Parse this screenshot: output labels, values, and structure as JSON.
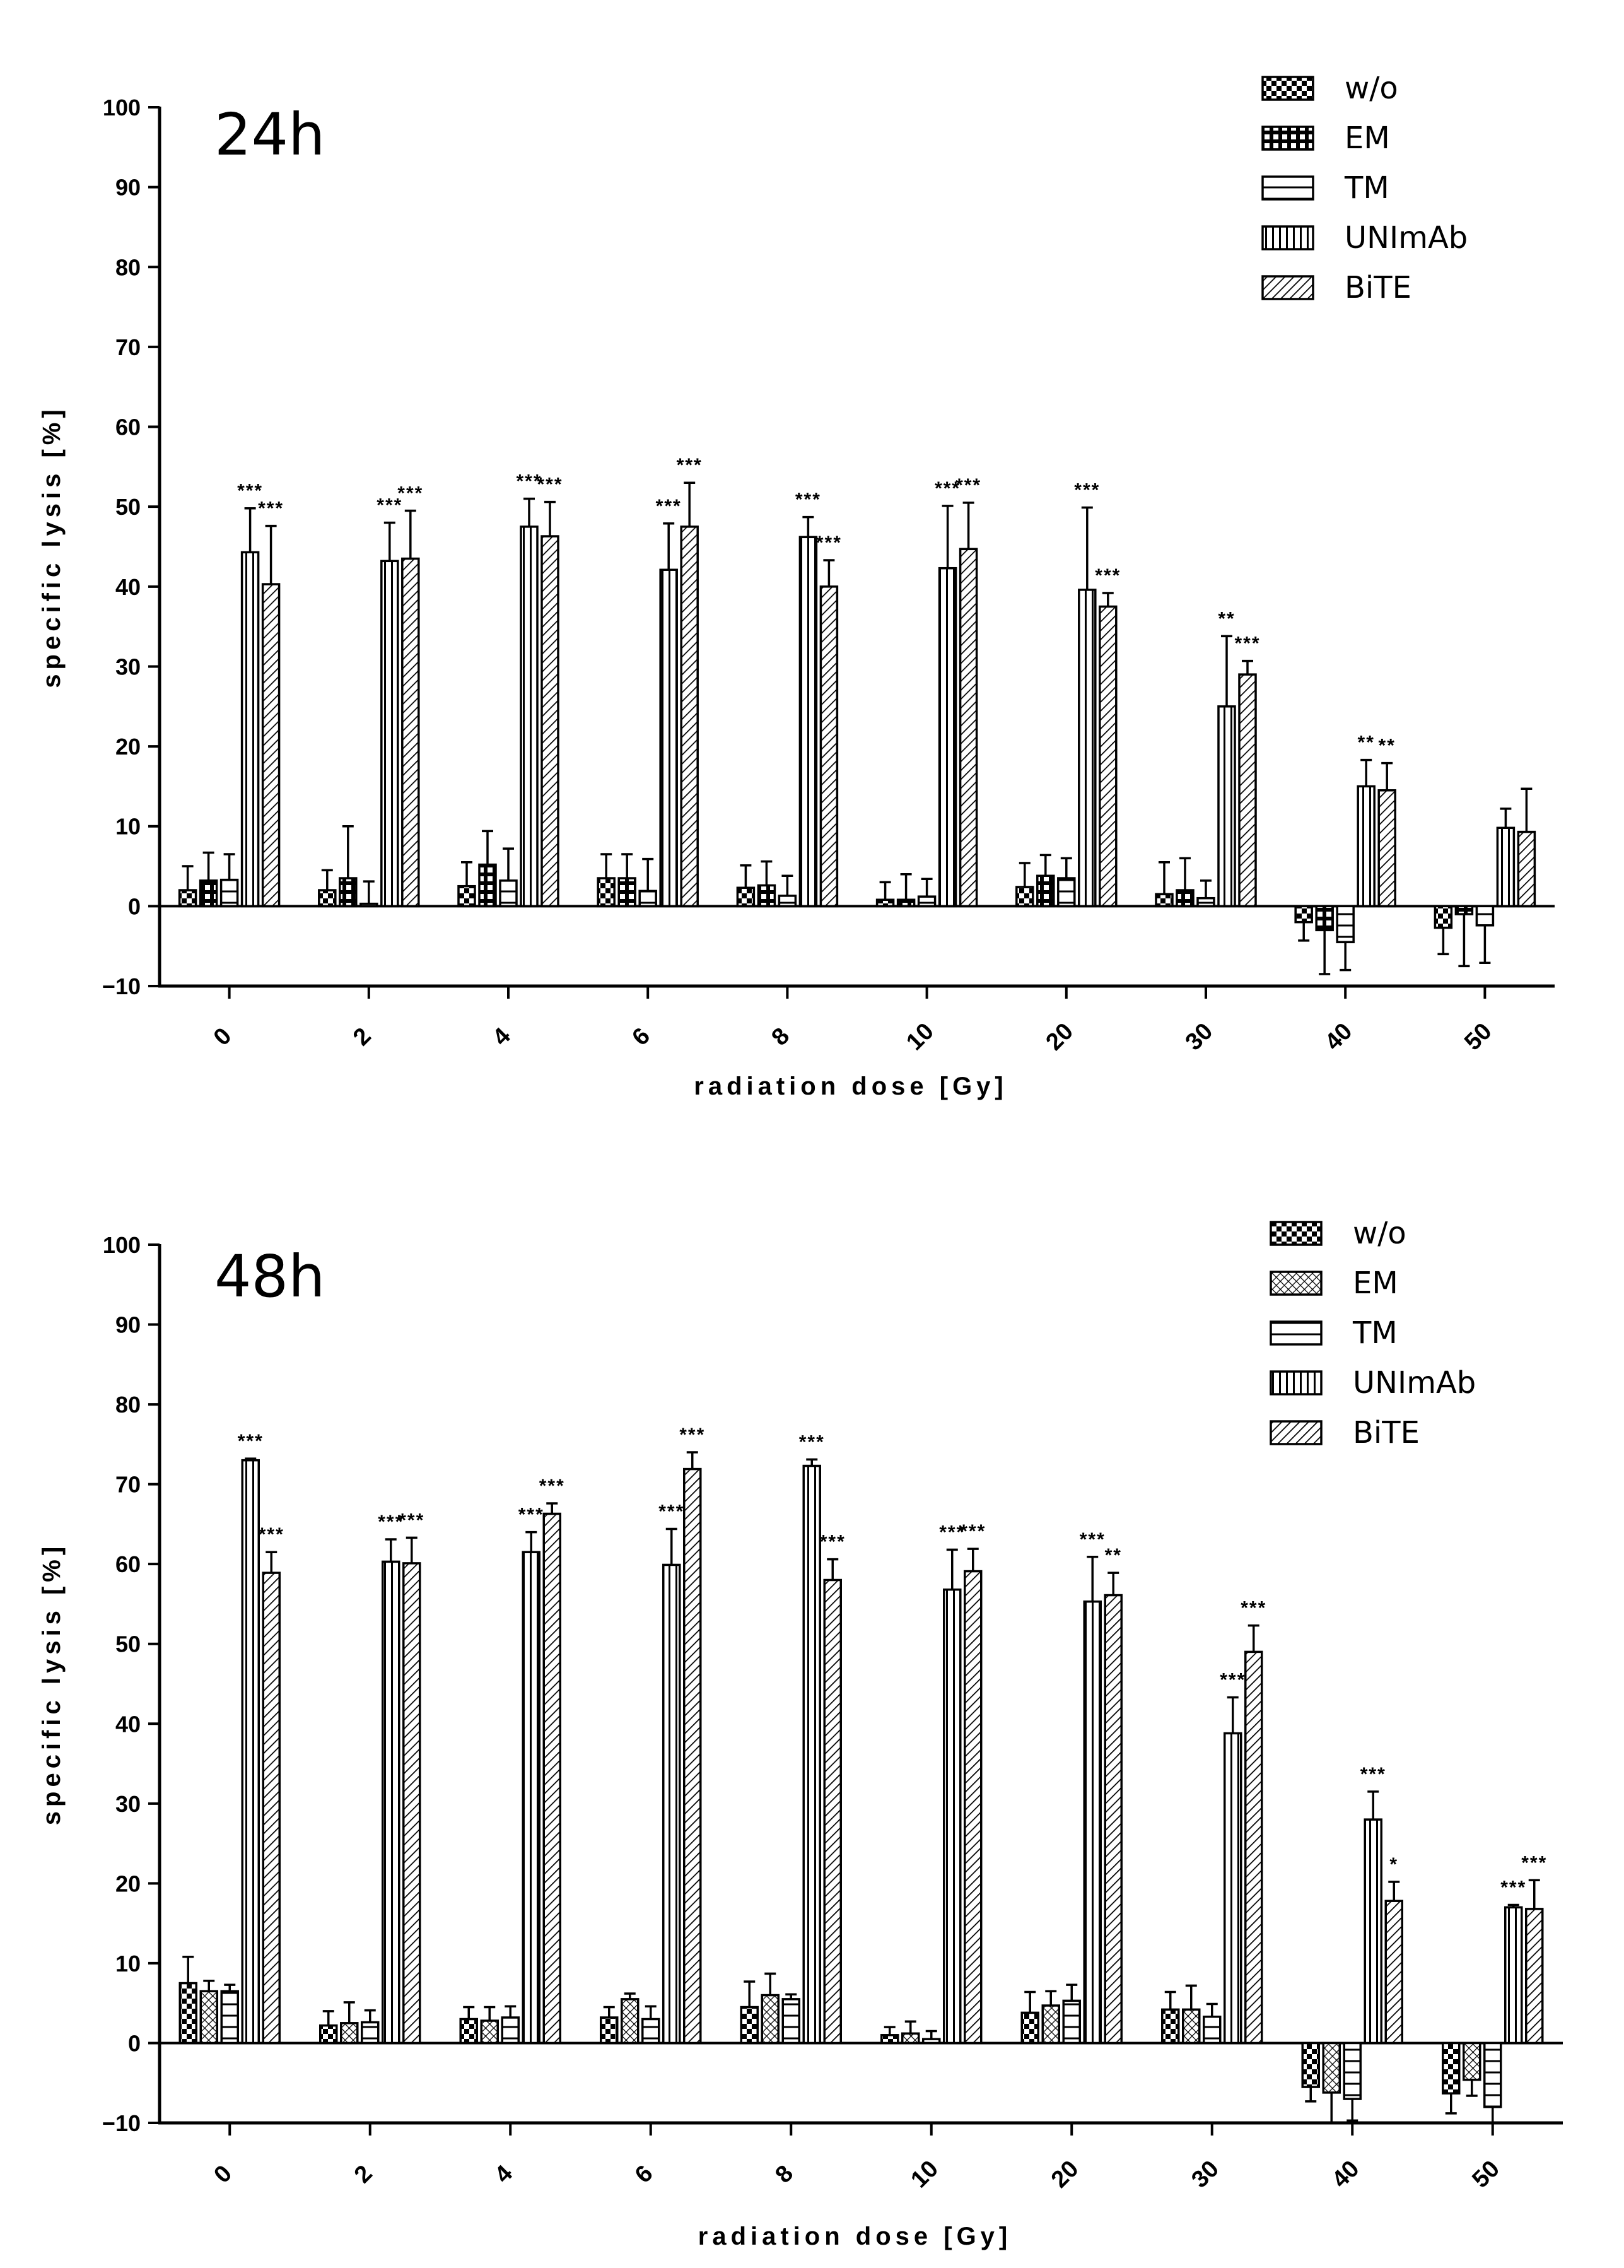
{
  "chart_data": [
    {
      "type": "bar",
      "title": "24h",
      "xlabel": "radiation dose [Gy]",
      "ylabel": "specific lysis [%]",
      "ylim": [
        -10,
        100
      ],
      "yticks": [
        -10,
        0,
        10,
        20,
        30,
        40,
        50,
        60,
        70,
        80,
        90,
        100
      ],
      "categories": [
        "0",
        "2",
        "4",
        "6",
        "8",
        "10",
        "20",
        "30",
        "40",
        "50"
      ],
      "series": [
        {
          "name": "w/o",
          "pattern": "checker",
          "values": [
            2,
            2,
            2.5,
            3.5,
            2.3,
            0.8,
            2.4,
            1.5,
            -2,
            -2.7
          ],
          "errors": [
            3,
            2.5,
            3,
            3,
            2.8,
            2.2,
            3,
            4,
            2.3,
            3.3
          ],
          "sig": [
            "",
            "",
            "",
            "",
            "",
            "",
            "",
            "",
            "",
            ""
          ]
        },
        {
          "name": "EM",
          "pattern": "grid",
          "values": [
            3.2,
            3.5,
            5.2,
            3.5,
            2.6,
            0.8,
            3.8,
            2,
            -3,
            -1
          ],
          "errors": [
            3.5,
            6.5,
            4.2,
            3,
            3,
            3.2,
            2.6,
            4,
            5.5,
            6.5
          ],
          "sig": [
            "",
            "",
            "",
            "",
            "",
            "",
            "",
            "",
            "",
            ""
          ]
        },
        {
          "name": "TM",
          "pattern": "hlines",
          "values": [
            3.3,
            0.3,
            3.2,
            1.9,
            1.3,
            1.2,
            3.5,
            1,
            -4.5,
            -2.4
          ],
          "errors": [
            3.2,
            2.8,
            4,
            4,
            2.5,
            2.2,
            2.5,
            2.2,
            3.5,
            4.7
          ],
          "sig": [
            "",
            "",
            "",
            "",
            "",
            "",
            "",
            "",
            "",
            ""
          ]
        },
        {
          "name": "UNImAb",
          "pattern": "vlines",
          "values": [
            44.3,
            43.2,
            47.5,
            42.1,
            46.2,
            42.3,
            39.6,
            25,
            15,
            9.8
          ],
          "errors": [
            5.5,
            4.8,
            3.5,
            5.8,
            2.5,
            7.8,
            10.3,
            8.8,
            3.3,
            2.4
          ],
          "sig": [
            "***",
            "***",
            "***",
            "***",
            "***",
            "***",
            "***",
            "**",
            "**",
            ""
          ]
        },
        {
          "name": "BiTE",
          "pattern": "diagonal",
          "values": [
            40.3,
            43.5,
            46.3,
            47.5,
            40,
            44.7,
            37.5,
            29,
            14.5,
            9.3
          ],
          "errors": [
            7.3,
            6,
            4.3,
            5.5,
            3.3,
            5.8,
            1.7,
            1.7,
            3.4,
            5.4
          ],
          "sig": [
            "***",
            "***",
            "***",
            "***",
            "***",
            "***",
            "***",
            "***",
            "**",
            ""
          ]
        }
      ]
    },
    {
      "type": "bar",
      "title": "48h",
      "xlabel": "radiation dose [Gy]",
      "ylabel": "specific lysis [%]",
      "ylim": [
        -10,
        100
      ],
      "yticks": [
        -10,
        0,
        10,
        20,
        30,
        40,
        50,
        60,
        70,
        80,
        90,
        100
      ],
      "categories": [
        "0",
        "2",
        "4",
        "6",
        "8",
        "10",
        "20",
        "30",
        "40",
        "50"
      ],
      "series": [
        {
          "name": "w/o",
          "pattern": "checker",
          "values": [
            7.5,
            2.2,
            3,
            3.2,
            4.5,
            1,
            3.8,
            4.2,
            -5.5,
            -6.3
          ],
          "errors": [
            3.3,
            1.8,
            1.5,
            1.3,
            3.2,
            1,
            2.6,
            2.2,
            1.8,
            2.5
          ],
          "sig": [
            "",
            "",
            "",
            "",
            "",
            "",
            "",
            "",
            "",
            ""
          ]
        },
        {
          "name": "EM",
          "pattern": "diamond",
          "values": [
            6.5,
            2.5,
            2.8,
            5.5,
            6,
            1.2,
            4.7,
            4.2,
            -6.2,
            -4.6
          ],
          "errors": [
            1.3,
            2.6,
            1.7,
            0.7,
            2.7,
            1.5,
            1.8,
            3,
            3.8,
            2
          ],
          "sig": [
            "",
            "",
            "",
            "",
            "",
            "",
            "",
            "",
            "",
            ""
          ]
        },
        {
          "name": "TM",
          "pattern": "hlines",
          "values": [
            6.5,
            2.6,
            3.2,
            3,
            5.5,
            0.5,
            5.3,
            3.3,
            -7,
            -8
          ],
          "errors": [
            0.8,
            1.5,
            1.4,
            1.6,
            0.6,
            1,
            2,
            1.6,
            2.7,
            2
          ],
          "sig": [
            "",
            "",
            "",
            "",
            "",
            "",
            "",
            "",
            "",
            ""
          ]
        },
        {
          "name": "UNImAb",
          "pattern": "vlines",
          "values": [
            73,
            60.3,
            61.5,
            59.9,
            72.3,
            56.8,
            55.3,
            38.8,
            28,
            17
          ],
          "errors": [
            0.2,
            2.8,
            2.5,
            4.5,
            0.8,
            5,
            5.6,
            4.5,
            3.5,
            0.3
          ],
          "sig": [
            "***",
            "***",
            "***",
            "***",
            "***",
            "***",
            "***",
            "***",
            "***",
            "***"
          ]
        },
        {
          "name": "BiTE",
          "pattern": "diagonal",
          "values": [
            58.9,
            60.1,
            66.3,
            71.9,
            58,
            59.1,
            56.1,
            49,
            17.8,
            16.8
          ],
          "errors": [
            2.6,
            3.2,
            1.3,
            2.1,
            2.6,
            2.8,
            2.8,
            3.3,
            2.4,
            3.6
          ],
          "sig": [
            "***",
            "***",
            "***",
            "***",
            "***",
            "***",
            "**",
            "***",
            "*",
            "***"
          ]
        }
      ]
    }
  ]
}
